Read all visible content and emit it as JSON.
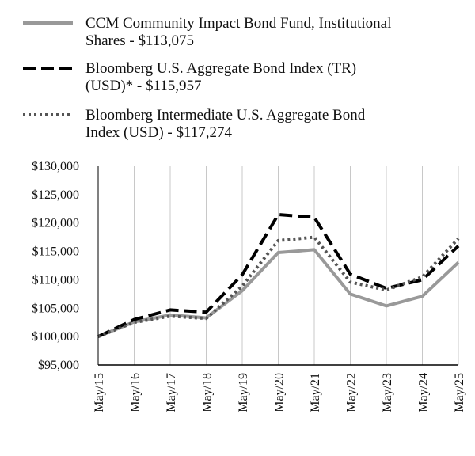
{
  "chart_data": {
    "type": "line",
    "title": "",
    "xlabel": "",
    "ylabel": "",
    "ylim": [
      95000,
      130000
    ],
    "grid": "vertical",
    "legend_position": "top",
    "categories": [
      "May/15",
      "May/16",
      "May/17",
      "May/18",
      "May/19",
      "May/20",
      "May/21",
      "May/22",
      "May/23",
      "May/24",
      "May/25"
    ],
    "y_ticks": [
      "$95,000",
      "$100,000",
      "$105,000",
      "$110,000",
      "$115,000",
      "$120,000",
      "$125,000",
      "$130,000"
    ],
    "series": [
      {
        "name_lines": [
          "CCM Community Impact Bond Fund, Institutional",
          "Shares - $113,075"
        ],
        "color": "#999999",
        "style": "solid",
        "values": [
          100000,
          102600,
          103800,
          103300,
          108100,
          114800,
          115300,
          107500,
          105400,
          107100,
          113075
        ]
      },
      {
        "name_lines": [
          "Bloomberg U.S. Aggregate Bond Index (TR)",
          "(USD)* - $115,957"
        ],
        "color": "#000000",
        "style": "dashed",
        "values": [
          100000,
          103000,
          104700,
          104300,
          110900,
          121500,
          121000,
          111000,
          108500,
          110000,
          115957
        ]
      },
      {
        "name_lines": [
          "Bloomberg Intermediate U.S. Aggregate Bond",
          "Index (USD) - $117,274"
        ],
        "color": "#555555",
        "style": "dotted",
        "values": [
          100000,
          102500,
          103600,
          103200,
          108900,
          116900,
          117500,
          109600,
          108200,
          110500,
          117274
        ]
      }
    ]
  }
}
